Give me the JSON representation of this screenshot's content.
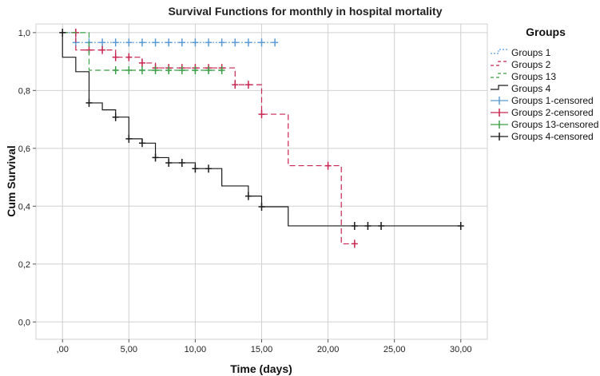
{
  "chart_data": {
    "type": "line",
    "subtype": "kaplan-meier-step",
    "title": "Survival Functions for monthly in hospital mortality",
    "xlabel": "Time (days)",
    "ylabel": "Cum Survival",
    "xlim": [
      -2,
      32
    ],
    "ylim": [
      -0.06,
      1.03
    ],
    "x_ticks": [
      {
        "value": 0,
        "label": ",00"
      },
      {
        "value": 5,
        "label": "5,00"
      },
      {
        "value": 10,
        "label": "10,00"
      },
      {
        "value": 15,
        "label": "15,00"
      },
      {
        "value": 20,
        "label": "20,00"
      },
      {
        "value": 25,
        "label": "25,00"
      },
      {
        "value": 30,
        "label": "30,00"
      }
    ],
    "y_ticks": [
      {
        "value": 0.0,
        "label": "0,0"
      },
      {
        "value": 0.2,
        "label": "0,2"
      },
      {
        "value": 0.4,
        "label": "0,4"
      },
      {
        "value": 0.6,
        "label": "0,6"
      },
      {
        "value": 0.8,
        "label": "0,8"
      },
      {
        "value": 1.0,
        "label": "1,0"
      }
    ],
    "grid": true,
    "legend": {
      "title": "Groups",
      "position": "right"
    },
    "series": [
      {
        "name": "Groups 1",
        "censored_name": "Groups 1-censored",
        "color": "#5b9bd5",
        "line_style": "dotted",
        "steps": [
          [
            0,
            1.0
          ],
          [
            1,
            0.966
          ],
          [
            16,
            0.966
          ]
        ],
        "censored": [
          [
            1,
            0.966
          ],
          [
            2,
            0.966
          ],
          [
            3,
            0.966
          ],
          [
            4,
            0.966
          ],
          [
            5,
            0.966
          ],
          [
            6,
            0.966
          ],
          [
            7,
            0.966
          ],
          [
            8,
            0.966
          ],
          [
            9,
            0.966
          ],
          [
            10,
            0.966
          ],
          [
            11,
            0.966
          ],
          [
            12,
            0.966
          ],
          [
            13,
            0.966
          ],
          [
            14,
            0.966
          ],
          [
            15,
            0.966
          ],
          [
            16,
            0.966
          ]
        ]
      },
      {
        "name": "Groups 2",
        "censored_name": "Groups 2-censored",
        "color": "#c8244f",
        "line_style": "dashed",
        "steps": [
          [
            0,
            1.0
          ],
          [
            1,
            0.94
          ],
          [
            4,
            0.915
          ],
          [
            6,
            0.895
          ],
          [
            7,
            0.878
          ],
          [
            13,
            0.82
          ],
          [
            15,
            0.718
          ],
          [
            17,
            0.54
          ],
          [
            21,
            0.27
          ],
          [
            22,
            0.27
          ]
        ],
        "censored": [
          [
            1,
            1.0
          ],
          [
            2,
            0.94
          ],
          [
            3,
            0.94
          ],
          [
            4,
            0.915
          ],
          [
            5,
            0.915
          ],
          [
            6,
            0.895
          ],
          [
            7,
            0.878
          ],
          [
            8,
            0.878
          ],
          [
            9,
            0.878
          ],
          [
            10,
            0.878
          ],
          [
            11,
            0.878
          ],
          [
            12,
            0.878
          ],
          [
            13,
            0.82
          ],
          [
            14,
            0.82
          ],
          [
            15,
            0.718
          ],
          [
            20,
            0.54
          ],
          [
            22,
            0.27
          ]
        ]
      },
      {
        "name": "Groups 13",
        "censored_name": "Groups 13-censored",
        "color": "#3aa046",
        "line_style": "dashed",
        "steps": [
          [
            0,
            1.0
          ],
          [
            2,
            0.87
          ],
          [
            12,
            0.87
          ]
        ],
        "censored": [
          [
            4,
            0.87
          ],
          [
            5,
            0.87
          ],
          [
            6,
            0.87
          ],
          [
            7,
            0.87
          ],
          [
            8,
            0.87
          ],
          [
            9,
            0.87
          ],
          [
            10,
            0.87
          ],
          [
            11,
            0.87
          ],
          [
            12,
            0.87
          ]
        ]
      },
      {
        "name": "Groups 4",
        "censored_name": "Groups 4-censored",
        "color": "#1a1a1a",
        "line_style": "solid",
        "steps": [
          [
            0,
            1.0
          ],
          [
            0,
            0.915
          ],
          [
            1,
            0.865
          ],
          [
            2,
            0.757
          ],
          [
            3,
            0.733
          ],
          [
            4,
            0.708
          ],
          [
            5,
            0.633
          ],
          [
            6,
            0.618
          ],
          [
            7,
            0.568
          ],
          [
            8,
            0.55
          ],
          [
            10,
            0.53
          ],
          [
            12,
            0.47
          ],
          [
            14,
            0.435
          ],
          [
            15,
            0.398
          ],
          [
            17,
            0.332
          ],
          [
            30,
            0.332
          ]
        ],
        "censored": [
          [
            0,
            1.0
          ],
          [
            2,
            0.757
          ],
          [
            4,
            0.708
          ],
          [
            5,
            0.633
          ],
          [
            6,
            0.618
          ],
          [
            7,
            0.568
          ],
          [
            8,
            0.55
          ],
          [
            9,
            0.55
          ],
          [
            10,
            0.53
          ],
          [
            11,
            0.53
          ],
          [
            14,
            0.435
          ],
          [
            15,
            0.398
          ],
          [
            22,
            0.332
          ],
          [
            23,
            0.332
          ],
          [
            24,
            0.332
          ],
          [
            30,
            0.332
          ]
        ]
      }
    ]
  }
}
